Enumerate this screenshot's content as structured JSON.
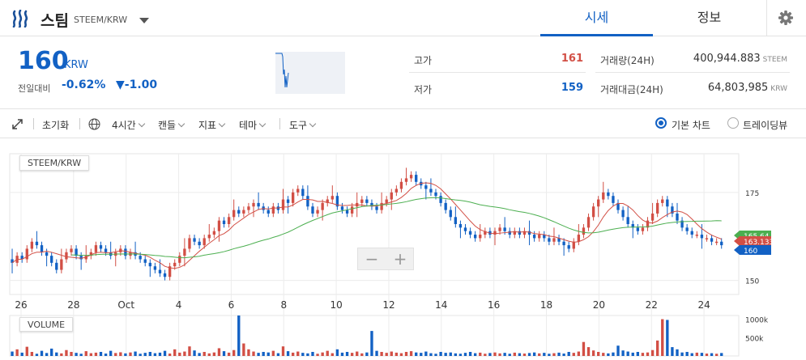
{
  "header": {
    "coin_name": "스팀",
    "pair": "STEEM/KRW",
    "tabs": [
      {
        "label": "시세"
      },
      {
        "label": "정보"
      }
    ]
  },
  "ticker": {
    "price": "160",
    "unit": "KRW",
    "change_label": "전일대비",
    "change_rate": "-0.62%",
    "change_amount": "▼-1.00",
    "high_label": "고가",
    "high": "161",
    "low_label": "저가",
    "low": "159",
    "volume_label": "거래량(24H)",
    "volume": "400,944.883",
    "volume_unit": "STEEM",
    "turnover_label": "거래대금(24H)",
    "turnover": "64,803,985",
    "turnover_unit": "KRW"
  },
  "toolbar": {
    "reset": "초기화",
    "interval": "4시간",
    "candle": "캔들",
    "indicator": "지표",
    "theme": "테마",
    "tools": "도구",
    "chart_basic": "기본 차트",
    "chart_tradingview": "트레이딩뷰"
  },
  "chart_labels": {
    "pair": "STEEM/KRW",
    "volume": "VOLUME",
    "zoom_out": "−",
    "zoom_in": "+"
  },
  "colors": {
    "up": "#d24f45",
    "down": "#1261c4",
    "ma_short": "#d24f45",
    "ma_long": "#4caf50"
  },
  "chart_data": {
    "type": "candlestick",
    "x_ticks": [
      "26",
      "28",
      "Oct",
      "4",
      "6",
      "8",
      "10",
      "12",
      "14",
      "16",
      "18",
      "20",
      "22",
      "24"
    ],
    "y_ticks": [
      175,
      150
    ],
    "ylim": [
      146,
      186
    ],
    "volume_ticks": [
      "1000k",
      "500k"
    ],
    "volume_ylim": [
      0,
      1100
    ],
    "badges": [
      {
        "value": "165.64",
        "color": "#4caf50"
      },
      {
        "value": "163.133",
        "color": "#d24f45"
      },
      {
        "value": "160",
        "color": "#1261c4"
      }
    ],
    "close": [
      155,
      157,
      156,
      159,
      161,
      160,
      158,
      157,
      155,
      153,
      156,
      158,
      159,
      157,
      156,
      157,
      158,
      160,
      159,
      158,
      157,
      158,
      159,
      157,
      158,
      157,
      156,
      155,
      154,
      153,
      152,
      151,
      154,
      155,
      157,
      159,
      162,
      161,
      160,
      162,
      163,
      164,
      167,
      166,
      168,
      170,
      169,
      170,
      171,
      172,
      171,
      170,
      169,
      171,
      170,
      173,
      172,
      175,
      176,
      174,
      171,
      169,
      170,
      172,
      173,
      174,
      171,
      170,
      169,
      171,
      172,
      173,
      172,
      171,
      170,
      172,
      173,
      175,
      176,
      178,
      179,
      180,
      178,
      177,
      176,
      175,
      174,
      172,
      170,
      168,
      166,
      165,
      164,
      163,
      162,
      163,
      164,
      163,
      164,
      165,
      164,
      163,
      164,
      163,
      164,
      163,
      162,
      163,
      162,
      161,
      162,
      161,
      160,
      159,
      161,
      163,
      165,
      168,
      171,
      173,
      175,
      174,
      172,
      170,
      168,
      166,
      165,
      164,
      165,
      167,
      169,
      172,
      173,
      171,
      169,
      167,
      165,
      164,
      163,
      163,
      162,
      162,
      161,
      161,
      160
    ],
    "volume": [
      120,
      180,
      90,
      250,
      110,
      60,
      140,
      80,
      200,
      95,
      70,
      160,
      110,
      85,
      60,
      130,
      75,
      90,
      110,
      65,
      140,
      80,
      100,
      70,
      95,
      120,
      60,
      85,
      110,
      75,
      90,
      140,
      65,
      180,
      90,
      120,
      260,
      150,
      80,
      110,
      70,
      95,
      210,
      130,
      90,
      160,
      1100,
      340,
      180,
      120,
      85,
      110,
      95,
      140,
      75,
      260,
      130,
      90,
      120,
      85,
      70,
      110,
      60,
      95,
      140,
      75,
      180,
      90,
      110,
      85,
      120,
      70,
      95,
      680,
      140,
      110,
      85,
      120,
      90,
      75,
      110,
      130,
      95,
      85,
      120,
      75,
      60,
      110,
      85,
      95,
      70,
      60,
      85,
      110,
      75,
      90,
      60,
      80,
      95,
      70,
      85,
      60,
      90,
      75,
      65,
      80,
      95,
      70,
      85,
      60,
      75,
      90,
      65,
      110,
      85,
      120,
      380,
      240,
      150,
      110,
      85,
      70,
      95,
      280,
      150,
      120,
      90,
      110,
      85,
      95,
      160,
      420,
      1000,
      980,
      240,
      180,
      95,
      110,
      75,
      90,
      85,
      65,
      75,
      60,
      80
    ]
  }
}
